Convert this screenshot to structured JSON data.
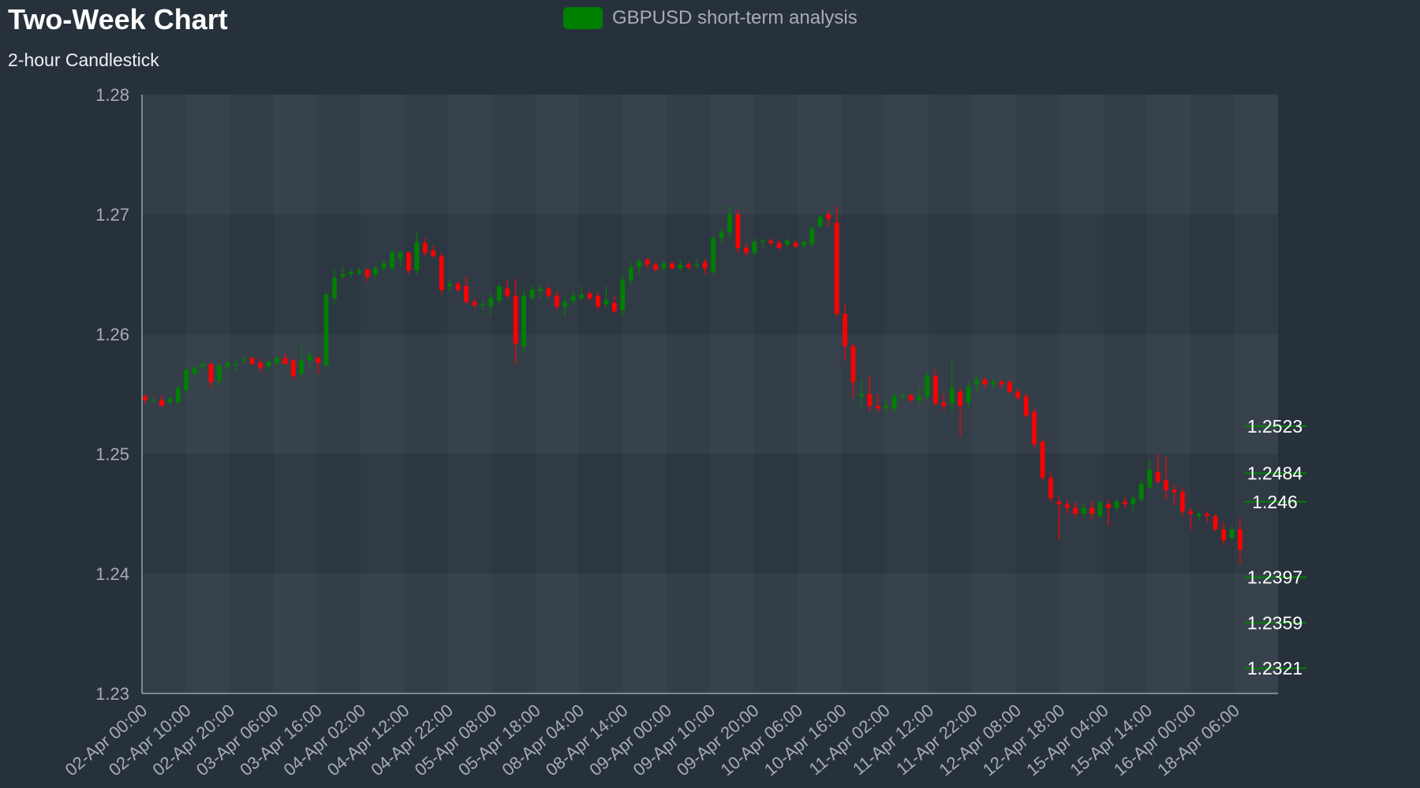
{
  "chart_data": {
    "type": "candlestick",
    "title": "Two-Week Chart",
    "subtitle": "2-hour Candlestick",
    "legend": {
      "label": "GBPUSD short-term analysis",
      "color": "#008000",
      "position": "top-center"
    },
    "colors": {
      "up": "#008000",
      "down": "#ff0000",
      "background": "#27313c",
      "plot": "#333d48",
      "axis": "#9aa1a9",
      "level_text": "#ffffff"
    },
    "ylim": [
      1.23,
      1.28
    ],
    "y_ticks": [
      1.23,
      1.24,
      1.25,
      1.26,
      1.27,
      1.28
    ],
    "y_tick_labels": [
      "1.23",
      "1.24",
      "1.25",
      "1.26",
      "1.27",
      "1.28"
    ],
    "x_tick_labels": [
      "02-Apr 00:00",
      "02-Apr 10:00",
      "02-Apr 20:00",
      "03-Apr 06:00",
      "03-Apr 16:00",
      "04-Apr 02:00",
      "04-Apr 12:00",
      "04-Apr 22:00",
      "05-Apr 08:00",
      "05-Apr 18:00",
      "08-Apr 04:00",
      "08-Apr 14:00",
      "09-Apr 00:00",
      "09-Apr 10:00",
      "09-Apr 20:00",
      "10-Apr 06:00",
      "10-Apr 16:00",
      "11-Apr 02:00",
      "11-Apr 12:00",
      "11-Apr 22:00",
      "12-Apr 08:00",
      "12-Apr 18:00",
      "15-Apr 04:00",
      "15-Apr 14:00",
      "16-Apr 00:00",
      "18-Apr 06:00"
    ],
    "level_labels": [
      {
        "value": 1.2523,
        "label": "1.2523"
      },
      {
        "value": 1.2484,
        "label": "1.2484"
      },
      {
        "value": 1.246,
        "label": "1.246"
      },
      {
        "value": 1.2397,
        "label": "1.2397"
      },
      {
        "value": 1.2359,
        "label": "1.2359"
      },
      {
        "value": 1.2321,
        "label": "1.2321"
      }
    ],
    "ohlc": [
      [
        1.2548,
        1.255,
        1.2542,
        1.2545
      ],
      [
        1.2545,
        1.2547,
        1.2543,
        1.2545
      ],
      [
        1.2545,
        1.2549,
        1.254,
        1.254
      ],
      [
        1.2543,
        1.2548,
        1.2541,
        1.2546
      ],
      [
        1.2543,
        1.2557,
        1.2541,
        1.2555
      ],
      [
        1.2553,
        1.2573,
        1.255,
        1.257
      ],
      [
        1.2567,
        1.2574,
        1.2563,
        1.2572
      ],
      [
        1.2573,
        1.2576,
        1.2568,
        1.2575
      ],
      [
        1.2575,
        1.2576,
        1.2555,
        1.256
      ],
      [
        1.2561,
        1.2575,
        1.2558,
        1.2574
      ],
      [
        1.2573,
        1.2577,
        1.257,
        1.2576
      ],
      [
        1.2575,
        1.258,
        1.2568,
        1.2575
      ],
      [
        1.2578,
        1.2582,
        1.2575,
        1.2579
      ],
      [
        1.258,
        1.2581,
        1.2574,
        1.2575
      ],
      [
        1.2576,
        1.258,
        1.2568,
        1.2572
      ],
      [
        1.2573,
        1.2578,
        1.257,
        1.2577
      ],
      [
        1.2576,
        1.2582,
        1.2574,
        1.258
      ],
      [
        1.258,
        1.2584,
        1.2575,
        1.2575
      ],
      [
        1.2578,
        1.258,
        1.2562,
        1.2565
      ],
      [
        1.2567,
        1.259,
        1.2565,
        1.2578
      ],
      [
        1.2578,
        1.2585,
        1.2573,
        1.2582
      ],
      [
        1.258,
        1.2582,
        1.2567,
        1.2576
      ],
      [
        1.2574,
        1.2636,
        1.2572,
        1.2633
      ],
      [
        1.263,
        1.2654,
        1.2625,
        1.2647
      ],
      [
        1.2648,
        1.2657,
        1.2645,
        1.265
      ],
      [
        1.265,
        1.2654,
        1.2647,
        1.2652
      ],
      [
        1.2651,
        1.2656,
        1.2649,
        1.2653
      ],
      [
        1.2654,
        1.2655,
        1.2644,
        1.2648
      ],
      [
        1.265,
        1.2657,
        1.2647,
        1.2655
      ],
      [
        1.2655,
        1.2662,
        1.2653,
        1.2659
      ],
      [
        1.2655,
        1.267,
        1.2653,
        1.2668
      ],
      [
        1.2663,
        1.267,
        1.2656,
        1.2668
      ],
      [
        1.2668,
        1.2669,
        1.265,
        1.2653
      ],
      [
        1.2653,
        1.2685,
        1.265,
        1.2677
      ],
      [
        1.2676,
        1.268,
        1.2665,
        1.2668
      ],
      [
        1.267,
        1.2674,
        1.2664,
        1.2665
      ],
      [
        1.2665,
        1.2668,
        1.2634,
        1.2637
      ],
      [
        1.264,
        1.2645,
        1.2635,
        1.2642
      ],
      [
        1.2642,
        1.2644,
        1.2635,
        1.2637
      ],
      [
        1.264,
        1.2648,
        1.2625,
        1.2627
      ],
      [
        1.2627,
        1.263,
        1.2622,
        1.2624
      ],
      [
        1.2624,
        1.2628,
        1.262,
        1.2625
      ],
      [
        1.2623,
        1.2635,
        1.2615,
        1.263
      ],
      [
        1.2628,
        1.2642,
        1.2625,
        1.264
      ],
      [
        1.2638,
        1.2645,
        1.263,
        1.2632
      ],
      [
        1.2632,
        1.2646,
        1.2575,
        1.2592
      ],
      [
        1.259,
        1.2637,
        1.2585,
        1.2632
      ],
      [
        1.263,
        1.264,
        1.2628,
        1.2637
      ],
      [
        1.2636,
        1.2642,
        1.263,
        1.2638
      ],
      [
        1.2638,
        1.264,
        1.263,
        1.2632
      ],
      [
        1.2632,
        1.2636,
        1.262,
        1.2623
      ],
      [
        1.2623,
        1.263,
        1.2615,
        1.2627
      ],
      [
        1.2628,
        1.2635,
        1.2625,
        1.2632
      ],
      [
        1.263,
        1.264,
        1.2628,
        1.2633
      ],
      [
        1.2634,
        1.2636,
        1.2628,
        1.263
      ],
      [
        1.2632,
        1.2635,
        1.262,
        1.2623
      ],
      [
        1.2625,
        1.264,
        1.2622,
        1.2628
      ],
      [
        1.2626,
        1.2632,
        1.2618,
        1.2619
      ],
      [
        1.262,
        1.265,
        1.2615,
        1.2645
      ],
      [
        1.2645,
        1.266,
        1.264,
        1.2656
      ],
      [
        1.2656,
        1.2663,
        1.265,
        1.2661
      ],
      [
        1.2662,
        1.2664,
        1.2655,
        1.2658
      ],
      [
        1.2658,
        1.266,
        1.2652,
        1.2654
      ],
      [
        1.2655,
        1.2661,
        1.2653,
        1.2659
      ],
      [
        1.2659,
        1.2661,
        1.2654,
        1.2655
      ],
      [
        1.2655,
        1.2662,
        1.2653,
        1.2658
      ],
      [
        1.2658,
        1.266,
        1.2654,
        1.2656
      ],
      [
        1.2657,
        1.2662,
        1.2655,
        1.2658
      ],
      [
        1.266,
        1.2663,
        1.265,
        1.2655
      ],
      [
        1.2652,
        1.2682,
        1.265,
        1.268
      ],
      [
        1.268,
        1.2688,
        1.2676,
        1.2685
      ],
      [
        1.2685,
        1.2708,
        1.268,
        1.27
      ],
      [
        1.27,
        1.2704,
        1.2668,
        1.2672
      ],
      [
        1.2672,
        1.2676,
        1.2665,
        1.2668
      ],
      [
        1.2668,
        1.268,
        1.2665,
        1.2677
      ],
      [
        1.2677,
        1.268,
        1.2672,
        1.2678
      ],
      [
        1.2678,
        1.268,
        1.2674,
        1.2676
      ],
      [
        1.2676,
        1.2678,
        1.267,
        1.2672
      ],
      [
        1.2675,
        1.268,
        1.2673,
        1.2678
      ],
      [
        1.2676,
        1.2678,
        1.2672,
        1.2673
      ],
      [
        1.2674,
        1.2678,
        1.2672,
        1.2677
      ],
      [
        1.2675,
        1.269,
        1.2673,
        1.2688
      ],
      [
        1.269,
        1.27,
        1.2688,
        1.2698
      ],
      [
        1.27,
        1.2703,
        1.269,
        1.2696
      ],
      [
        1.2693,
        1.2707,
        1.2615,
        1.2617
      ],
      [
        1.2617,
        1.2625,
        1.2578,
        1.259
      ],
      [
        1.259,
        1.2592,
        1.2547,
        1.256
      ],
      [
        1.2548,
        1.2562,
        1.254,
        1.255
      ],
      [
        1.255,
        1.2565,
        1.2535,
        1.254
      ],
      [
        1.254,
        1.255,
        1.2535,
        1.2538
      ],
      [
        1.2538,
        1.2545,
        1.2535,
        1.254
      ],
      [
        1.2538,
        1.2552,
        1.2535,
        1.2548
      ],
      [
        1.2548,
        1.255,
        1.2545,
        1.2549
      ],
      [
        1.2549,
        1.255,
        1.2543,
        1.2545
      ],
      [
        1.2545,
        1.2555,
        1.2542,
        1.2548
      ],
      [
        1.2548,
        1.2568,
        1.2545,
        1.2565
      ],
      [
        1.2565,
        1.257,
        1.254,
        1.2542
      ],
      [
        1.2543,
        1.255,
        1.2537,
        1.254
      ],
      [
        1.2542,
        1.2578,
        1.2535,
        1.2555
      ],
      [
        1.2552,
        1.2555,
        1.2515,
        1.254
      ],
      [
        1.2543,
        1.256,
        1.2538,
        1.2556
      ],
      [
        1.2558,
        1.2565,
        1.255,
        1.2562
      ],
      [
        1.2562,
        1.2564,
        1.2555,
        1.2558
      ],
      [
        1.2558,
        1.2563,
        1.2555,
        1.256
      ],
      [
        1.256,
        1.2562,
        1.2555,
        1.2558
      ],
      [
        1.256,
        1.2562,
        1.255,
        1.2552
      ],
      [
        1.2552,
        1.2555,
        1.2545,
        1.2547
      ],
      [
        1.2548,
        1.2551,
        1.253,
        1.2532
      ],
      [
        1.2535,
        1.2538,
        1.2505,
        1.2508
      ],
      [
        1.251,
        1.2512,
        1.2478,
        1.248
      ],
      [
        1.248,
        1.2485,
        1.246,
        1.2463
      ],
      [
        1.246,
        1.2465,
        1.2428,
        1.2458
      ],
      [
        1.2458,
        1.2462,
        1.245,
        1.2455
      ],
      [
        1.2455,
        1.246,
        1.2447,
        1.245
      ],
      [
        1.245,
        1.2458,
        1.2447,
        1.2455
      ],
      [
        1.2455,
        1.246,
        1.2445,
        1.245
      ],
      [
        1.2448,
        1.246,
        1.2446,
        1.246
      ],
      [
        1.2458,
        1.2462,
        1.244,
        1.2455
      ],
      [
        1.2455,
        1.2462,
        1.2452,
        1.246
      ],
      [
        1.246,
        1.2464,
        1.2455,
        1.2458
      ],
      [
        1.2458,
        1.2465,
        1.2452,
        1.2463
      ],
      [
        1.2462,
        1.2478,
        1.246,
        1.2475
      ],
      [
        1.2472,
        1.2495,
        1.247,
        1.2487
      ],
      [
        1.2485,
        1.25,
        1.2475,
        1.2477
      ],
      [
        1.2478,
        1.2498,
        1.2462,
        1.247
      ],
      [
        1.247,
        1.2475,
        1.2457,
        1.2468
      ],
      [
        1.2468,
        1.2472,
        1.2448,
        1.2452
      ],
      [
        1.2452,
        1.2455,
        1.2437,
        1.245
      ],
      [
        1.2448,
        1.2452,
        1.2445,
        1.245
      ],
      [
        1.245,
        1.2452,
        1.2443,
        1.2448
      ],
      [
        1.2448,
        1.245,
        1.2435,
        1.2437
      ],
      [
        1.2437,
        1.2443,
        1.2424,
        1.2428
      ],
      [
        1.243,
        1.244,
        1.2428,
        1.2437
      ],
      [
        1.2437,
        1.2447,
        1.2408,
        1.242
      ]
    ]
  }
}
